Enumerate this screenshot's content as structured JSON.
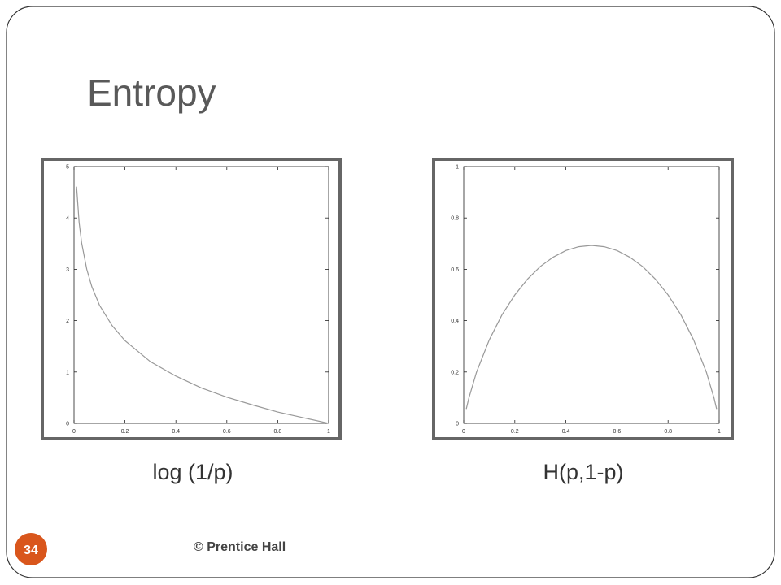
{
  "title": "Entropy",
  "footer": "© Prentice Hall",
  "page_number": "34",
  "chart_data": [
    {
      "type": "line",
      "xlabel": "log (1/p)",
      "x": [
        0.01,
        0.02,
        0.03,
        0.05,
        0.07,
        0.1,
        0.15,
        0.2,
        0.3,
        0.4,
        0.5,
        0.6,
        0.7,
        0.8,
        0.9,
        1.0
      ],
      "series": [
        {
          "color": "#999999",
          "values": [
            4.61,
            3.91,
            3.51,
            3.0,
            2.66,
            2.3,
            1.9,
            1.61,
            1.2,
            0.92,
            0.69,
            0.51,
            0.36,
            0.22,
            0.11,
            0
          ]
        }
      ],
      "xlim": [
        0,
        1
      ],
      "ylim": [
        0,
        5
      ],
      "xticks": [
        0,
        0.2,
        0.4,
        0.6,
        0.8,
        1
      ],
      "yticks": [
        0,
        1,
        2,
        3,
        4,
        5
      ],
      "grid": false
    },
    {
      "type": "line",
      "xlabel": "H(p,1-p)",
      "x": [
        0.01,
        0.02,
        0.05,
        0.1,
        0.15,
        0.2,
        0.25,
        0.3,
        0.35,
        0.4,
        0.45,
        0.5,
        0.55,
        0.6,
        0.65,
        0.7,
        0.75,
        0.8,
        0.85,
        0.9,
        0.95,
        0.98,
        0.99
      ],
      "series": [
        {
          "color": "#999999",
          "values": [
            0.056,
            0.098,
            0.199,
            0.325,
            0.423,
            0.5,
            0.562,
            0.611,
            0.647,
            0.673,
            0.688,
            0.693,
            0.688,
            0.673,
            0.647,
            0.611,
            0.562,
            0.5,
            0.423,
            0.325,
            0.199,
            0.098,
            0.056
          ]
        }
      ],
      "xlim": [
        0,
        1
      ],
      "ylim": [
        0,
        1
      ],
      "xticks": [
        0,
        0.2,
        0.4,
        0.6,
        0.8,
        1
      ],
      "yticks": [
        0,
        0.2,
        0.4,
        0.6,
        0.8,
        1
      ],
      "grid": false
    }
  ]
}
